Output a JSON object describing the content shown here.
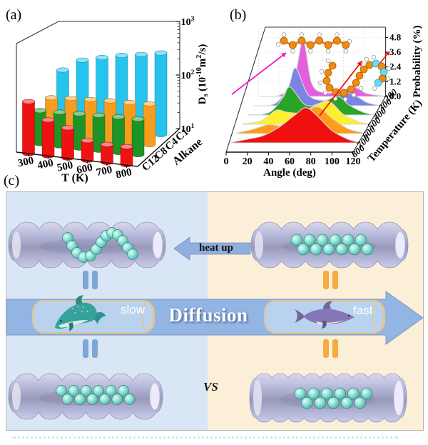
{
  "panels": {
    "a": {
      "label": "(a)"
    },
    "b": {
      "label": "(b)"
    },
    "c": {
      "label": "(c)",
      "heat_up_label": "heat up",
      "diffusion_label": "Diffusion",
      "slow_label": "slow",
      "fast_label": "fast",
      "vs_label": "VS",
      "colors": {
        "left_bg": "#d9e6f5",
        "right_bg": "#fcefd8",
        "diffusion_arrow": "#93b5e3",
        "heat_arrow": "#8fafdf",
        "equals_blue": "#7da7d9",
        "equals_orange": "#f5ab3f",
        "tube": "#b2b4d8",
        "chain": "#5fd9c8",
        "capsule_fill": "#b9d3ef",
        "capsule_stroke": "#e6c48e",
        "dolphin_slow": "#35a39a",
        "dolphin_fast": "#8678b8"
      }
    }
  },
  "chart_data": [
    {
      "type": "bar3d",
      "panel": "a",
      "xlabel": "T (K)",
      "x_ticks": [
        "300",
        "400",
        "500",
        "600",
        "700",
        "800"
      ],
      "ylabel": "Ds (10-10 m2/s)",
      "ylabel_rich": [
        [
          "D",
          0
        ],
        [
          "s",
          2
        ],
        [
          " (10",
          0
        ],
        [
          "-10",
          1
        ],
        [
          "m",
          0
        ],
        [
          "2",
          1
        ],
        [
          "/s)",
          0
        ]
      ],
      "y_scale": "log",
      "y_ticks": [
        [
          "10",
          "1"
        ],
        [
          "10",
          "2"
        ],
        [
          "10",
          "3"
        ]
      ],
      "y_range": [
        10,
        1000
      ],
      "zlabel": "Alkane",
      "z_categories": [
        "C12",
        "C8",
        "C4",
        "C1"
      ],
      "series": [
        {
          "name": "C1",
          "color": "#25c3ee",
          "values": [
            140,
            235,
            290,
            350,
            400,
            470
          ]
        },
        {
          "name": "C4",
          "color": "#f69d20",
          "values": [
            42,
            45,
            47,
            49,
            50,
            52
          ]
        },
        {
          "name": "C8",
          "color": "#1f9426",
          "values": [
            33,
            34,
            35,
            36,
            37,
            37
          ]
        },
        {
          "name": "C12",
          "color": "#ee1212",
          "values": [
            56,
            28,
            22,
            14,
            13,
            13
          ]
        }
      ]
    },
    {
      "type": "ridgeline",
      "panel": "b",
      "xlabel": "Angle (deg)",
      "x_ticks": [
        0,
        20,
        40,
        60,
        80,
        100,
        120
      ],
      "ylabel": "Probability (%)",
      "y_ticks": [
        "0.0",
        "1.2",
        "2.4",
        "3.6",
        "4.8"
      ],
      "zlabel": "Temperature (K)",
      "z_ticks": [
        "200",
        "300",
        "400",
        "500",
        "600",
        "700",
        "800"
      ],
      "series": [
        {
          "temp": 200,
          "color": "#e45fde",
          "points": [
            [
              0,
              0
            ],
            [
              20,
              0.1
            ],
            [
              33,
              1.2
            ],
            [
              42,
              4.6
            ],
            [
              50,
              1.1
            ],
            [
              62,
              0.3
            ],
            [
              80,
              0.5
            ],
            [
              90,
              0.8
            ],
            [
              102,
              0.25
            ],
            [
              120,
              0.02
            ]
          ]
        },
        {
          "temp": 300,
          "color": "#7b83e4",
          "points": [
            [
              0,
              0
            ],
            [
              20,
              0.15
            ],
            [
              33,
              1.5
            ],
            [
              40,
              3.1
            ],
            [
              52,
              0.9
            ],
            [
              68,
              0.45
            ],
            [
              85,
              1.05
            ],
            [
              95,
              0.9
            ],
            [
              108,
              0.25
            ],
            [
              120,
              0.02
            ]
          ]
        },
        {
          "temp": 400,
          "color": "#28a428",
          "points": [
            [
              0,
              0.02
            ],
            [
              20,
              0.2
            ],
            [
              33,
              1.4
            ],
            [
              40,
              2.3
            ],
            [
              55,
              0.8
            ],
            [
              72,
              1.1
            ],
            [
              85,
              1.55
            ],
            [
              96,
              0.8
            ],
            [
              110,
              0.2
            ],
            [
              120,
              0.02
            ]
          ]
        },
        {
          "temp": 500,
          "color": "#ffef2f",
          "points": [
            [
              0,
              0.03
            ],
            [
              18,
              0.3
            ],
            [
              32,
              1.15
            ],
            [
              42,
              1.0
            ],
            [
              55,
              0.95
            ],
            [
              70,
              1.6
            ],
            [
              82,
              1.9
            ],
            [
              95,
              0.85
            ],
            [
              110,
              0.2
            ],
            [
              120,
              0.03
            ]
          ]
        },
        {
          "temp": 600,
          "color": "#ff9c1a",
          "points": [
            [
              0,
              0.05
            ],
            [
              15,
              0.35
            ],
            [
              30,
              0.75
            ],
            [
              42,
              0.65
            ],
            [
              55,
              1.2
            ],
            [
              68,
              2.0
            ],
            [
              78,
              2.15
            ],
            [
              90,
              1.25
            ],
            [
              105,
              0.4
            ],
            [
              120,
              0.05
            ]
          ]
        },
        {
          "temp": 700,
          "color": "#f01010",
          "points": [
            [
              0,
              0.05
            ],
            [
              15,
              0.3
            ],
            [
              30,
              0.6
            ],
            [
              45,
              1.3
            ],
            [
              60,
              2.3
            ],
            [
              70,
              2.9
            ],
            [
              80,
              2.3
            ],
            [
              95,
              1.0
            ],
            [
              110,
              0.3
            ],
            [
              120,
              0.05
            ]
          ]
        }
      ],
      "annotations": {
        "straight_molecule": "straight-alkane-molecule",
        "coiled_molecule": "coiled-alkane-molecule",
        "magenta_arrow_color": "#f017c8",
        "red_arrow_color": "#ee1111"
      }
    }
  ]
}
